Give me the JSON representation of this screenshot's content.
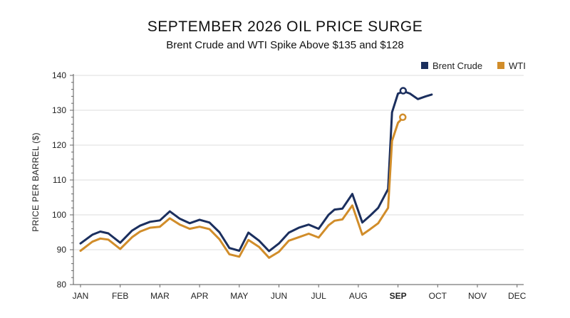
{
  "chart_data": {
    "type": "line",
    "title": "SEPTEMBER 2026 OIL PRICE SURGE",
    "subtitle": "Brent Crude and WTI Spike Above $135 and $128",
    "ylabel": "PRICE PER BARREL ($)",
    "xlabel": "",
    "ylim": [
      80,
      140
    ],
    "yticks": [
      80,
      90,
      100,
      110,
      120,
      130,
      140
    ],
    "categories": [
      "JAN",
      "FEB",
      "MAR",
      "APR",
      "MAY",
      "JUN",
      "JUL",
      "AUG",
      "SEP",
      "OCT",
      "NOV",
      "DEC"
    ],
    "highlight_category": "SEP",
    "grid": true,
    "legend_position": "top-right",
    "series": [
      {
        "name": "Brent Crude",
        "color": "#1b2f5e",
        "points": [
          [
            0,
            91.8
          ],
          [
            0.3,
            94.3
          ],
          [
            0.5,
            95.2
          ],
          [
            0.7,
            94.7
          ],
          [
            1.0,
            92.0
          ],
          [
            1.3,
            95.5
          ],
          [
            1.5,
            96.9
          ],
          [
            1.75,
            98.0
          ],
          [
            2.0,
            98.4
          ],
          [
            2.25,
            101.0
          ],
          [
            2.5,
            98.9
          ],
          [
            2.75,
            97.6
          ],
          [
            3.0,
            98.6
          ],
          [
            3.25,
            97.8
          ],
          [
            3.5,
            95.0
          ],
          [
            3.75,
            90.5
          ],
          [
            4.0,
            89.7
          ],
          [
            4.23,
            94.9
          ],
          [
            4.5,
            92.6
          ],
          [
            4.75,
            89.6
          ],
          [
            5.0,
            91.8
          ],
          [
            5.25,
            94.9
          ],
          [
            5.5,
            96.3
          ],
          [
            5.75,
            97.2
          ],
          [
            6.0,
            96.0
          ],
          [
            6.25,
            100.0
          ],
          [
            6.4,
            101.5
          ],
          [
            6.6,
            101.8
          ],
          [
            6.85,
            106.0
          ],
          [
            7.1,
            97.8
          ],
          [
            7.3,
            99.8
          ],
          [
            7.5,
            102.0
          ],
          [
            7.75,
            107.4
          ],
          [
            7.85,
            129.4
          ],
          [
            8.0,
            134.8
          ],
          [
            8.15,
            135.4
          ],
          [
            8.3,
            134.8
          ],
          [
            8.5,
            133.2
          ],
          [
            8.7,
            134.0
          ],
          [
            8.85,
            134.5
          ]
        ],
        "marker": [
          8.13,
          135.6
        ]
      },
      {
        "name": "WTI",
        "color": "#d18d2a",
        "points": [
          [
            0,
            89.7
          ],
          [
            0.3,
            92.3
          ],
          [
            0.5,
            93.2
          ],
          [
            0.7,
            92.9
          ],
          [
            1.0,
            90.2
          ],
          [
            1.3,
            93.6
          ],
          [
            1.5,
            95.2
          ],
          [
            1.75,
            96.3
          ],
          [
            2.0,
            96.6
          ],
          [
            2.25,
            99.0
          ],
          [
            2.5,
            97.2
          ],
          [
            2.75,
            96.0
          ],
          [
            3.0,
            96.6
          ],
          [
            3.25,
            95.9
          ],
          [
            3.5,
            93.0
          ],
          [
            3.75,
            88.7
          ],
          [
            4.0,
            88.0
          ],
          [
            4.23,
            92.8
          ],
          [
            4.5,
            90.8
          ],
          [
            4.75,
            87.7
          ],
          [
            5.0,
            89.4
          ],
          [
            5.25,
            92.6
          ],
          [
            5.5,
            93.6
          ],
          [
            5.75,
            94.6
          ],
          [
            6.0,
            93.5
          ],
          [
            6.25,
            97.0
          ],
          [
            6.4,
            98.3
          ],
          [
            6.6,
            98.7
          ],
          [
            6.85,
            102.7
          ],
          [
            7.1,
            94.3
          ],
          [
            7.3,
            95.9
          ],
          [
            7.5,
            97.6
          ],
          [
            7.75,
            102.0
          ],
          [
            7.85,
            121.2
          ],
          [
            8.0,
            126.4
          ],
          [
            8.1,
            127.6
          ]
        ],
        "marker": [
          8.12,
          128.0
        ]
      }
    ]
  }
}
